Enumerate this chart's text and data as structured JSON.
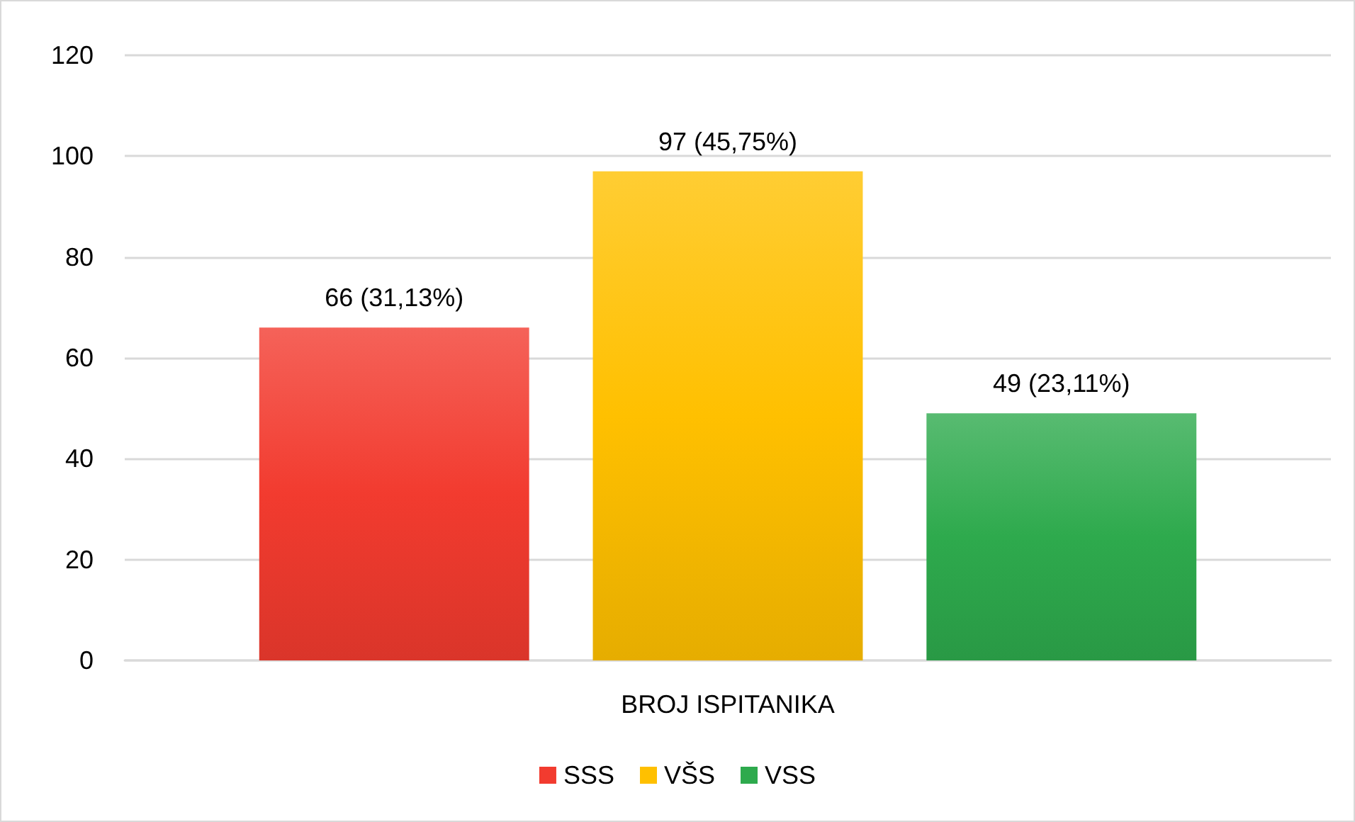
{
  "chart_data": {
    "type": "bar",
    "categories": [
      "BROJ ISPITANIKA"
    ],
    "series": [
      {
        "name": "SSS",
        "color": "#f23b2f",
        "values": [
          66
        ],
        "value_labels": [
          "66 (31,13%)"
        ]
      },
      {
        "name": "VŠS",
        "color": "#ffc000",
        "values": [
          97
        ],
        "value_labels": [
          "97 (45,75%)"
        ]
      },
      {
        "name": "VSS",
        "color": "#2eaa4d",
        "values": [
          49
        ],
        "value_labels": [
          "49 (23,11%)"
        ]
      }
    ],
    "ylim": [
      0,
      120
    ],
    "yticks": [
      0,
      20,
      40,
      60,
      80,
      100,
      120
    ],
    "grid": "y",
    "legend": "bottom"
  }
}
